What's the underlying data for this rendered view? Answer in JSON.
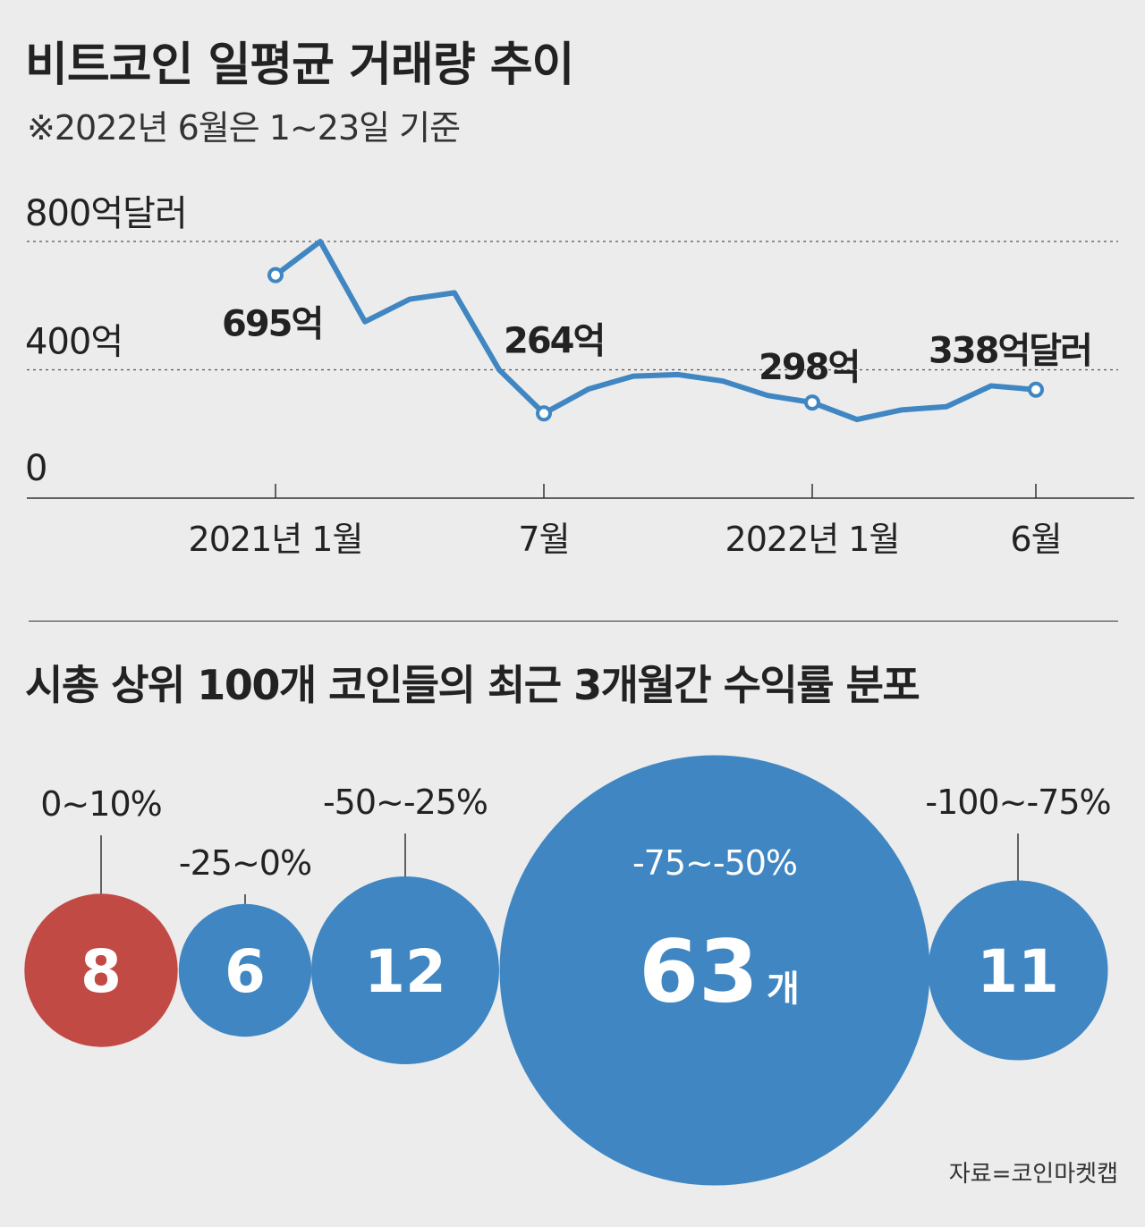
{
  "title": "비트코인 일평균 거래량 추이",
  "subtitle": "※2022년 6월은 1~23일 기준",
  "colors": {
    "line": "#3f86c2",
    "bubble_blue": "#3f86c2",
    "bubble_red": "#c24a45",
    "background": "#ececec"
  },
  "chart_data": [
    {
      "type": "line",
      "ylim": [
        0,
        800
      ],
      "y_ticks": [
        {
          "value": 0,
          "label": "0"
        },
        {
          "value": 400,
          "label": "400억"
        },
        {
          "value": 800,
          "label": "800억달러"
        }
      ],
      "x_ticks": [
        {
          "index": 0,
          "label": "2021년 1월"
        },
        {
          "index": 6,
          "label": "7월"
        },
        {
          "index": 12,
          "label": "2022년 1월"
        },
        {
          "index": 17,
          "label": "6월"
        }
      ],
      "x": [
        "2021-01",
        "2021-02",
        "2021-03",
        "2021-04",
        "2021-05",
        "2021-06",
        "2021-07",
        "2021-08",
        "2021-09",
        "2021-10",
        "2021-11",
        "2021-12",
        "2022-01",
        "2022-02",
        "2022-03",
        "2022-04",
        "2022-05",
        "2022-06"
      ],
      "values": [
        695,
        800,
        550,
        620,
        640,
        400,
        264,
        340,
        380,
        385,
        365,
        320,
        298,
        245,
        275,
        285,
        350,
        338
      ],
      "grid": "dashed at 400 and 800",
      "annotations": [
        {
          "index": 0,
          "label": "695억"
        },
        {
          "index": 6,
          "label": "264억"
        },
        {
          "index": 12,
          "label": "298억"
        },
        {
          "index": 17,
          "label": "338억달러"
        }
      ]
    },
    {
      "type": "bubble",
      "title": "시총 상위 100개 코인들의 최근 3개월간 수익률 분포",
      "categories": [
        "0~10%",
        "-25~0%",
        "-50~-25%",
        "-75~-50%",
        "-100~-75%"
      ],
      "values": [
        8,
        6,
        12,
        63,
        11
      ],
      "value_labels": [
        "8",
        "6",
        "12",
        "63",
        "11"
      ],
      "highlight_unit": "개",
      "highlight_index": 3
    }
  ],
  "source": "자료=코인마켓캡"
}
